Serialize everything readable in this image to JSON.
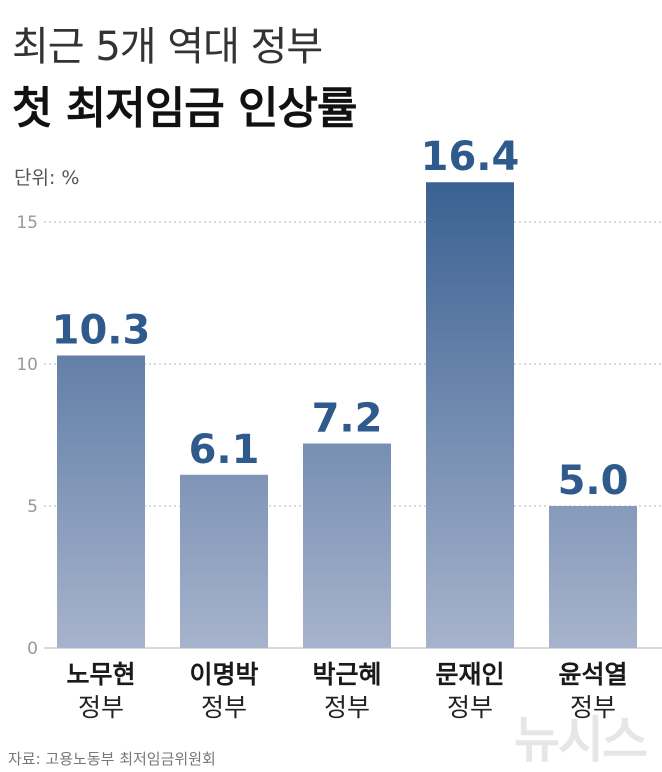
{
  "title_line1": "최근 5개 역대 정부",
  "title_line2": "첫 최저임금 인상률",
  "unit_label": "단위: %",
  "source": "자료: 고용노동부 최저임금위원회",
  "watermark": "뉴시스",
  "colors": {
    "bar_top": "#3a6192",
    "bar_bottom": "#a7b3cc",
    "value_label": "#2f5a8c",
    "grid": "#b5b5b5",
    "axis_tick": "#999999"
  },
  "chart_data": {
    "type": "bar",
    "title": "최근 5개 역대 정부 첫 최저임금 인상률",
    "ylabel": "단위: %",
    "ylim": [
      0,
      17
    ],
    "yticks": [
      0,
      5,
      10,
      15
    ],
    "grid": true,
    "categories": [
      {
        "name": "노무현",
        "sub": "정부"
      },
      {
        "name": "이명박",
        "sub": "정부"
      },
      {
        "name": "박근혜",
        "sub": "정부"
      },
      {
        "name": "문재인",
        "sub": "정부"
      },
      {
        "name": "윤석열",
        "sub": "정부"
      }
    ],
    "values": [
      10.3,
      6.1,
      7.2,
      16.4,
      5.0
    ],
    "value_labels": [
      "10.3",
      "6.1",
      "7.2",
      "16.4",
      "5.0"
    ]
  }
}
